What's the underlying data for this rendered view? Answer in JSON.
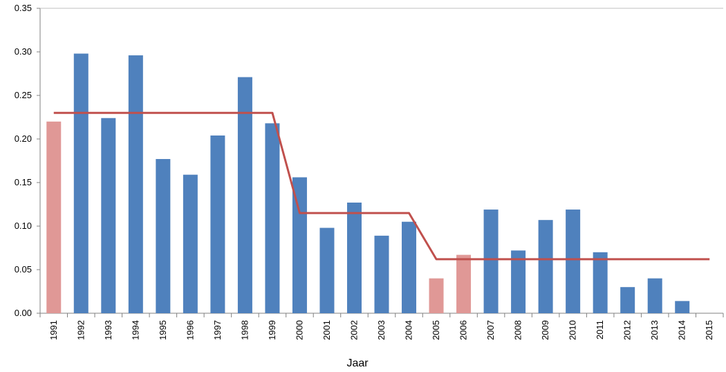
{
  "chart_data": {
    "type": "bar",
    "title": "",
    "xlabel": "Jaar",
    "ylabel": "",
    "ylim": [
      0,
      0.35
    ],
    "yticks": [
      "0.00",
      "0.05",
      "0.10",
      "0.15",
      "0.20",
      "0.25",
      "0.30",
      "0.35"
    ],
    "grid": false,
    "legend": "none",
    "categories": [
      "1991",
      "1992",
      "1993",
      "1994",
      "1995",
      "1996",
      "1997",
      "1998",
      "1999",
      "2000",
      "2001",
      "2002",
      "2003",
      "2004",
      "2005",
      "2006",
      "2007",
      "2008",
      "2009",
      "2010",
      "2011",
      "2012",
      "2013",
      "2014",
      "2015"
    ],
    "values": [
      0.22,
      0.298,
      0.224,
      0.296,
      0.177,
      0.159,
      0.204,
      0.271,
      0.218,
      0.156,
      0.098,
      0.127,
      0.089,
      0.105,
      0.04,
      0.067,
      0.119,
      0.072,
      0.107,
      0.119,
      0.07,
      0.03,
      0.04,
      0.014,
      null
    ],
    "highlighted_categories": [
      "1991",
      "2005",
      "2006"
    ],
    "trend_line": {
      "x": [
        "1991",
        "1992",
        "1993",
        "1994",
        "1995",
        "1996",
        "1997",
        "1998",
        "1999",
        "2000",
        "2001",
        "2002",
        "2003",
        "2004",
        "2005",
        "2006",
        "2007",
        "2008",
        "2009",
        "2010",
        "2011",
        "2012",
        "2013",
        "2014",
        "2015"
      ],
      "y": [
        0.23,
        0.23,
        0.23,
        0.23,
        0.23,
        0.23,
        0.23,
        0.23,
        0.23,
        0.115,
        0.115,
        0.115,
        0.115,
        0.115,
        0.062,
        0.062,
        0.062,
        0.062,
        0.062,
        0.062,
        0.062,
        0.062,
        0.062,
        0.062,
        0.062
      ]
    },
    "colors": {
      "bar": "#4f81bd",
      "highlight": "#e09896",
      "line": "#c0504d",
      "axis": "#808080"
    }
  }
}
